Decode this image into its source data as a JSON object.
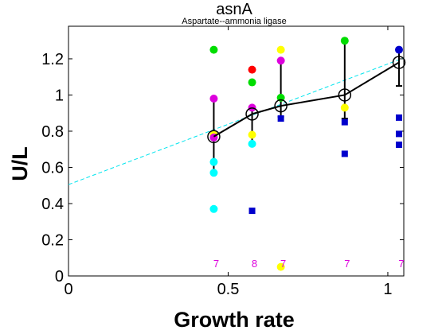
{
  "chart_data": {
    "type": "scatter",
    "title": "asnA",
    "subtitle": "Aspartate--ammonia ligase",
    "xlabel": "Growth rate",
    "ylabel": "U/L",
    "xlim": [
      0,
      1.05
    ],
    "ylim": [
      0,
      1.38
    ],
    "x_ticks": [
      0,
      0.5,
      1
    ],
    "x_tick_labels": [
      "0",
      "0.5",
      "1"
    ],
    "y_ticks": [
      0,
      0.2,
      0.4,
      0.6,
      0.8,
      1.0,
      1.2
    ],
    "y_tick_labels": [
      "0",
      "0.2",
      "0.4",
      "0.6",
      "0.8",
      "1",
      "1.2"
    ],
    "grid": false,
    "fit_line": {
      "style": "dashed",
      "color": "#00e5ee",
      "x": [
        0,
        1.05
      ],
      "y": [
        0.505,
        1.205
      ]
    },
    "mean_series": {
      "color": "#000000",
      "x": [
        0.455,
        0.575,
        0.665,
        0.865,
        1.035
      ],
      "y": [
        0.77,
        0.895,
        0.94,
        1.0,
        1.18
      ],
      "err_low": [
        0.57,
        0.73,
        0.88,
        0.87,
        1.05
      ],
      "err_high": [
        0.98,
        0.93,
        1.19,
        1.3,
        1.25
      ]
    },
    "points": [
      {
        "x": 0.455,
        "y": 1.25,
        "color": "#00dd00",
        "shape": "circle"
      },
      {
        "x": 0.455,
        "y": 0.98,
        "color": "#dd00dd",
        "shape": "circle"
      },
      {
        "x": 0.455,
        "y": 0.78,
        "color": "#ffff00",
        "shape": "circle"
      },
      {
        "x": 0.455,
        "y": 0.765,
        "color": "#dd00dd",
        "shape": "circle"
      },
      {
        "x": 0.455,
        "y": 0.63,
        "color": "#00ffff",
        "shape": "circle"
      },
      {
        "x": 0.455,
        "y": 0.57,
        "color": "#00ffff",
        "shape": "circle"
      },
      {
        "x": 0.455,
        "y": 0.37,
        "color": "#00ffff",
        "shape": "circle"
      },
      {
        "x": 0.575,
        "y": 1.14,
        "color": "#ff0000",
        "shape": "circle"
      },
      {
        "x": 0.575,
        "y": 1.07,
        "color": "#00dd00",
        "shape": "circle"
      },
      {
        "x": 0.575,
        "y": 0.93,
        "color": "#dd00dd",
        "shape": "circle"
      },
      {
        "x": 0.575,
        "y": 0.78,
        "color": "#ffff00",
        "shape": "circle"
      },
      {
        "x": 0.575,
        "y": 0.73,
        "color": "#00ffff",
        "shape": "circle"
      },
      {
        "x": 0.575,
        "y": 0.36,
        "color": "#0000cc",
        "shape": "square"
      },
      {
        "x": 0.665,
        "y": 1.25,
        "color": "#ffff00",
        "shape": "circle"
      },
      {
        "x": 0.665,
        "y": 1.19,
        "color": "#dd00dd",
        "shape": "circle"
      },
      {
        "x": 0.665,
        "y": 0.985,
        "color": "#00dd00",
        "shape": "circle"
      },
      {
        "x": 0.665,
        "y": 0.87,
        "color": "#0000cc",
        "shape": "square"
      },
      {
        "x": 0.665,
        "y": 0.05,
        "color": "#ffff00",
        "shape": "circle"
      },
      {
        "x": 0.865,
        "y": 1.3,
        "color": "#00dd00",
        "shape": "circle"
      },
      {
        "x": 0.865,
        "y": 0.93,
        "color": "#ffff00",
        "shape": "circle"
      },
      {
        "x": 0.865,
        "y": 0.85,
        "color": "#0000cc",
        "shape": "square"
      },
      {
        "x": 0.865,
        "y": 0.675,
        "color": "#0000cc",
        "shape": "square"
      },
      {
        "x": 1.035,
        "y": 1.25,
        "color": "#0000cc",
        "shape": "circle"
      },
      {
        "x": 1.035,
        "y": 0.875,
        "color": "#0000cc",
        "shape": "square"
      },
      {
        "x": 1.035,
        "y": 0.785,
        "color": "#0000cc",
        "shape": "square"
      },
      {
        "x": 1.035,
        "y": 0.725,
        "color": "#0000cc",
        "shape": "square"
      }
    ],
    "counts": [
      {
        "x": 0.455,
        "label": "7"
      },
      {
        "x": 0.575,
        "label": "8"
      },
      {
        "x": 0.665,
        "label": "7"
      },
      {
        "x": 0.865,
        "label": "7"
      },
      {
        "x": 1.035,
        "label": "7"
      }
    ],
    "count_color": "#dd00dd",
    "count_y": 0.07
  }
}
